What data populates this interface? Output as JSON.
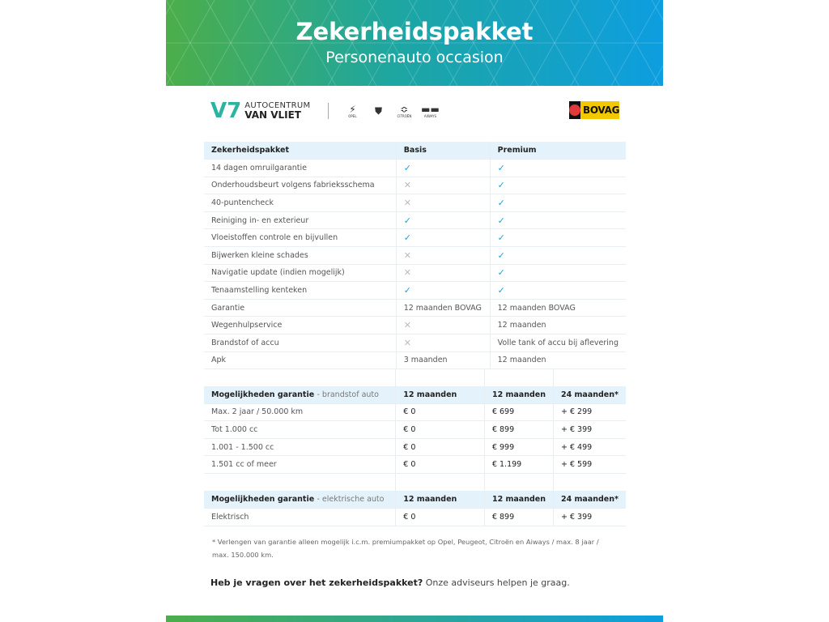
{
  "header": {
    "title": "Zekerheidspakket",
    "subtitle": "Personenauto occasion"
  },
  "logos": {
    "dealer_line1": "AUTOCENTRUM",
    "dealer_line2": "VAN VLIET",
    "brands": [
      "OPEL",
      "PEUGEOT",
      "CITROËN",
      "AIWAYS"
    ],
    "bovag": "BOVAG"
  },
  "colors": {
    "check": "#17a3d6",
    "header_row": "#e4f3fb",
    "gradient_start": "#4cae4a",
    "gradient_end": "#0d9ee0"
  },
  "pakket": {
    "headers": [
      "Zekerheidspakket",
      "Basis",
      "Premium"
    ],
    "rows": [
      {
        "label": "14 dagen omruilgarantie",
        "basis": "check",
        "premium": "check"
      },
      {
        "label": "Onderhoudsbeurt volgens fabrieksschema",
        "basis": "cross",
        "premium": "check"
      },
      {
        "label": "40-puntencheck",
        "basis": "cross",
        "premium": "check"
      },
      {
        "label": "Reiniging in- en exterieur",
        "basis": "check",
        "premium": "check"
      },
      {
        "label": "Vloeistoffen controle en bijvullen",
        "basis": "check",
        "premium": "check"
      },
      {
        "label": "Bijwerken kleine schades",
        "basis": "cross",
        "premium": "check"
      },
      {
        "label": "Navigatie update (indien mogelijk)",
        "basis": "cross",
        "premium": "check"
      },
      {
        "label": "Tenaamstelling kenteken",
        "basis": "check",
        "premium": "check"
      },
      {
        "label": "Garantie",
        "basis": "12 maanden BOVAG",
        "premium": "12 maanden BOVAG"
      },
      {
        "label": "Wegenhulpservice",
        "basis": "cross",
        "premium": "12 maanden"
      },
      {
        "label": "Brandstof of accu",
        "basis": "cross",
        "premium": "Volle tank of accu bij aflevering"
      },
      {
        "label": "Apk",
        "basis": "3 maanden",
        "premium": "12 maanden"
      }
    ]
  },
  "brandstof": {
    "title": "Mogelijkheden garantie",
    "subtitle": "- brandstof auto",
    "cols": [
      "12 maanden",
      "12 maanden",
      "24 maanden*"
    ],
    "rows": [
      [
        "Max. 2 jaar / 50.000 km",
        "€ 0",
        "€ 699",
        "+ € 299"
      ],
      [
        "Tot 1.000 cc",
        "€ 0",
        "€ 899",
        "+ € 399"
      ],
      [
        "1.001 - 1.500 cc",
        "€ 0",
        "€ 999",
        "+ € 499"
      ],
      [
        "1.501 cc of meer",
        "€ 0",
        "€ 1.199",
        "+ € 599"
      ]
    ]
  },
  "elektrisch": {
    "title": "Mogelijkheden garantie",
    "subtitle": "- elektrische auto",
    "cols": [
      "12 maanden",
      "12 maanden",
      "24 maanden*"
    ],
    "rows": [
      [
        "Elektrisch",
        "€ 0",
        "€ 899",
        "+ € 399"
      ]
    ]
  },
  "footnote": "* Verlengen van garantie alleen mogelijk i.c.m. premiumpakket op Opel, Peugeot, Citroën en Aiways / max. 8 jaar / max. 150.000 km.",
  "question": {
    "bold": "Heb je vragen over het zekerheidspakket?",
    "rest": " Onze adviseurs helpen je graag."
  }
}
